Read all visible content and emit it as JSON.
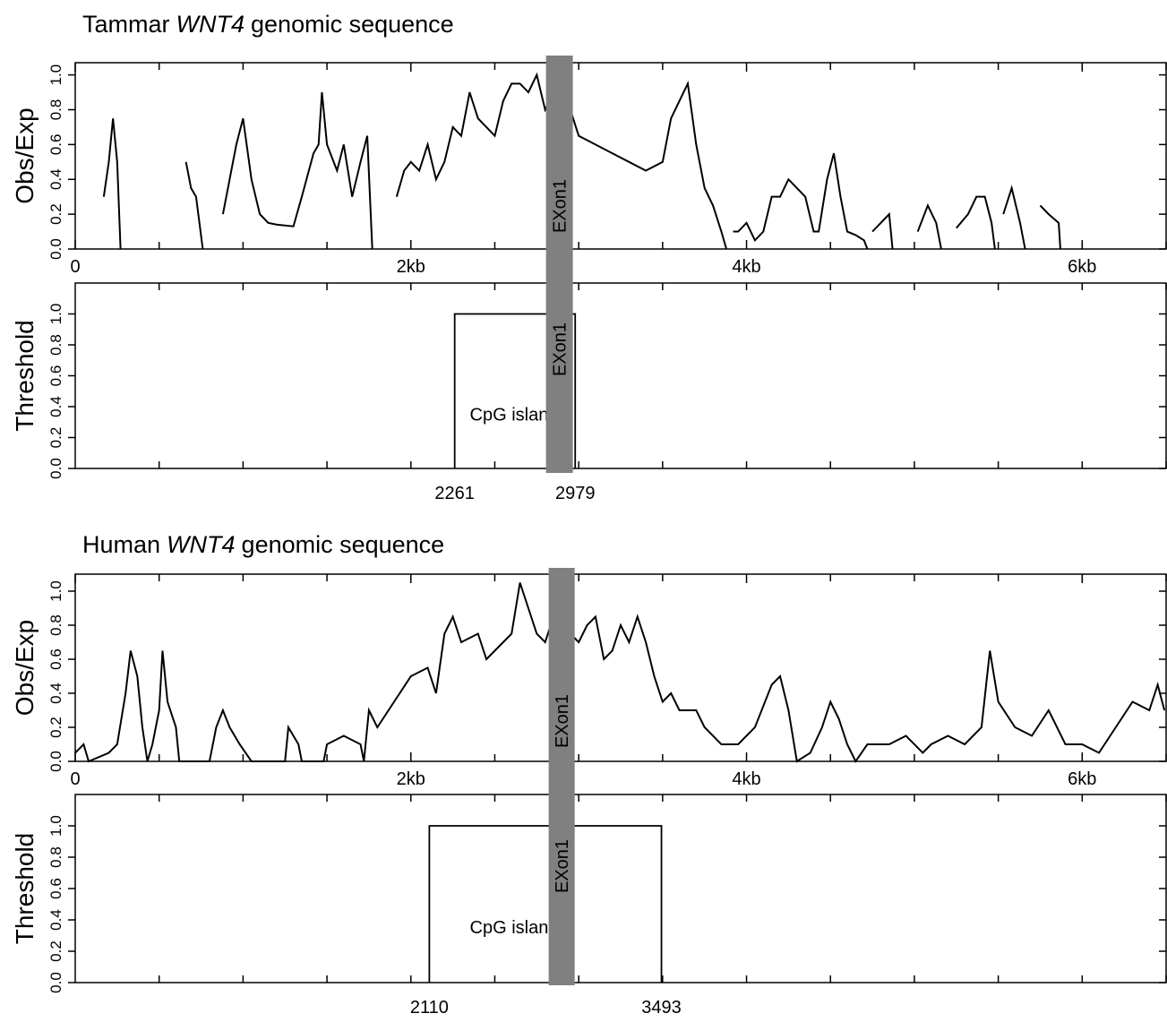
{
  "chart_data": [
    {
      "type": "line",
      "title_prefix": "Tammar",
      "title_gene": "WNT4",
      "title_suffix": "genomic sequence",
      "ylabel": "Obs/Exp",
      "x": [
        170,
        200,
        225,
        250,
        270,
        300,
        660,
        690,
        720,
        760,
        800,
        880,
        920,
        960,
        1000,
        1050,
        1100,
        1150,
        1200,
        1300,
        1350,
        1420,
        1450,
        1470,
        1500,
        1560,
        1600,
        1650,
        1700,
        1740,
        1770,
        1800,
        1915,
        1960,
        2000,
        2050,
        2100,
        2150,
        2200,
        2250,
        2300,
        2350,
        2400,
        2450,
        2500,
        2550,
        2600,
        2650,
        2700,
        2750,
        2800,
        2850,
        2900,
        2950,
        3000,
        3100,
        3200,
        3300,
        3400,
        3500,
        3550,
        3650,
        3700,
        3750,
        3800,
        3850,
        3880,
        3900,
        3920,
        3950,
        4000,
        4050,
        4100,
        4150,
        4200,
        4250,
        4300,
        4350,
        4400,
        4430,
        4480,
        4520,
        4560,
        4600,
        4650,
        4700,
        4720,
        4735,
        4750,
        4850,
        4870,
        4950,
        5020,
        5080,
        5130,
        5160,
        5200,
        5250,
        5320,
        5370,
        5420,
        5460,
        5480,
        5500,
        5530,
        5580,
        5630,
        5660,
        5700,
        5750,
        5800,
        5860,
        5870
      ],
      "series": [
        {
          "name": "Obs/Exp",
          "color": "#000000",
          "values": [
            0.3,
            0.5,
            0.75,
            0.5,
            0.0,
            null,
            0.5,
            0.35,
            0.3,
            0.0,
            null,
            0.2,
            0.4,
            0.6,
            0.75,
            0.4,
            0.2,
            0.15,
            0.14,
            0.13,
            0.3,
            0.55,
            0.6,
            0.9,
            0.6,
            0.45,
            0.6,
            0.3,
            0.5,
            0.65,
            0.0,
            null,
            0.3,
            0.45,
            0.5,
            0.45,
            0.6,
            0.4,
            0.5,
            0.7,
            0.65,
            0.9,
            0.75,
            0.7,
            0.65,
            0.85,
            0.95,
            0.95,
            0.9,
            1.0,
            0.8,
            0.9,
            1.05,
            0.8,
            0.65,
            0.6,
            0.55,
            0.5,
            0.45,
            0.5,
            0.75,
            0.95,
            0.6,
            0.35,
            0.25,
            0.1,
            0.0,
            null,
            0.1,
            0.1,
            0.15,
            0.05,
            0.1,
            0.3,
            0.3,
            0.4,
            0.35,
            0.3,
            0.1,
            0.1,
            0.4,
            0.55,
            0.3,
            0.1,
            0.08,
            0.05,
            0.0,
            null,
            0.1,
            0.2,
            0.0,
            null,
            0.1,
            0.25,
            0.15,
            0.0,
            null,
            0.12,
            0.2,
            0.3,
            0.3,
            0.15,
            0.0,
            null,
            0.2,
            0.35,
            0.15,
            0.0,
            null,
            0.25,
            0.2,
            0.15,
            0.0
          ]
        }
      ],
      "xlim": [
        0,
        6500
      ],
      "ylim": [
        0,
        1.07
      ],
      "xticks": [
        0,
        {
          "value": 2000,
          "label": "2kb"
        },
        {
          "value": 4000,
          "label": "4kb"
        },
        {
          "value": 6000,
          "label": "6kb"
        }
      ],
      "minor_xticks": [
        500,
        1000,
        1500,
        2500,
        3000,
        3500,
        4500,
        5000,
        5500,
        6000,
        6500
      ],
      "yticks": [
        {
          "value": 0,
          "label": "0.0"
        },
        0.2,
        0.4,
        0.6,
        0.8,
        {
          "value": 1,
          "label": "1.0"
        }
      ],
      "exon": {
        "label": "EXon1",
        "start": 2805,
        "end": 2965,
        "color": "#808080"
      }
    },
    {
      "type": "step",
      "ylabel": "Threshold",
      "island": {
        "label": "CpG island",
        "start": 2261,
        "end": 2979,
        "value": 1,
        "color": "#000000"
      },
      "xlim": [
        0,
        6500
      ],
      "ylim": [
        0,
        1.2
      ],
      "minor_xticks": [
        500,
        1000,
        1500,
        2000,
        2500,
        3000,
        3500,
        4000,
        4500,
        5000,
        5500,
        6000,
        6500
      ],
      "yticks": [
        {
          "value": 0,
          "label": "0.0"
        },
        0.2,
        0.4,
        0.6,
        0.8,
        {
          "value": 1,
          "label": "1.0"
        }
      ],
      "exon": {
        "label": "EXon1",
        "start": 2805,
        "end": 2965,
        "color": "#808080"
      }
    },
    {
      "type": "line",
      "title_prefix": "Human",
      "title_gene": "WNT4",
      "title_suffix": "genomic sequence",
      "ylabel": "Obs/Exp",
      "x": [
        0,
        50,
        80,
        200,
        250,
        300,
        330,
        370,
        400,
        430,
        460,
        500,
        520,
        550,
        600,
        620,
        800,
        840,
        880,
        920,
        980,
        1050,
        1250,
        1270,
        1330,
        1350,
        1480,
        1500,
        1600,
        1700,
        1720,
        1750,
        1800,
        1900,
        2000,
        2100,
        2150,
        2200,
        2250,
        2300,
        2400,
        2450,
        2500,
        2600,
        2650,
        2700,
        2750,
        2800,
        2850,
        2900,
        2950,
        3000,
        3050,
        3100,
        3150,
        3200,
        3250,
        3300,
        3350,
        3400,
        3450,
        3500,
        3550,
        3600,
        3700,
        3750,
        3850,
        3950,
        4050,
        4150,
        4200,
        4250,
        4300,
        4380,
        4450,
        4500,
        4550,
        4600,
        4650,
        4720,
        4850,
        4950,
        5050,
        5100,
        5200,
        5300,
        5400,
        5450,
        5500,
        5600,
        5700,
        5800,
        5900,
        6000,
        6100,
        6200,
        6300,
        6400,
        6450,
        6490
      ],
      "series": [
        {
          "name": "Obs/Exp",
          "color": "#000000",
          "values": [
            0.05,
            0.1,
            0.0,
            0.05,
            0.1,
            0.4,
            0.65,
            0.5,
            0.2,
            0.0,
            0.1,
            0.3,
            0.65,
            0.35,
            0.2,
            0.0,
            0.0,
            0.2,
            0.3,
            0.2,
            0.1,
            0.0,
            0.0,
            0.2,
            0.1,
            0.0,
            0.0,
            0.1,
            0.15,
            0.1,
            0.0,
            0.3,
            0.2,
            0.35,
            0.5,
            0.55,
            0.4,
            0.75,
            0.85,
            0.7,
            0.75,
            0.6,
            0.65,
            0.75,
            1.05,
            0.9,
            0.75,
            0.7,
            0.85,
            1.0,
            0.75,
            0.7,
            0.8,
            0.85,
            0.6,
            0.65,
            0.8,
            0.7,
            0.85,
            0.7,
            0.5,
            0.35,
            0.4,
            0.3,
            0.3,
            0.2,
            0.1,
            0.1,
            0.2,
            0.45,
            0.5,
            0.3,
            0.0,
            0.05,
            0.2,
            0.35,
            0.25,
            0.1,
            0.0,
            0.1,
            0.1,
            0.15,
            0.05,
            0.1,
            0.15,
            0.1,
            0.2,
            0.65,
            0.35,
            0.2,
            0.15,
            0.3,
            0.1,
            0.1,
            0.05,
            0.2,
            0.35,
            0.3,
            0.45,
            0.3
          ]
        }
      ],
      "xlim": [
        0,
        6500
      ],
      "ylim": [
        0,
        1.1
      ],
      "xticks": [
        0,
        {
          "value": 2000,
          "label": "2kb"
        },
        {
          "value": 4000,
          "label": "4kb"
        },
        {
          "value": 6000,
          "label": "6kb"
        }
      ],
      "minor_xticks": [
        500,
        1000,
        1500,
        2500,
        3000,
        3500,
        4500,
        5000,
        5500,
        6000,
        6500
      ],
      "yticks": [
        {
          "value": 0,
          "label": "0.0"
        },
        0.2,
        0.4,
        0.6,
        0.8,
        {
          "value": 1,
          "label": "1.0"
        }
      ],
      "exon": {
        "label": "EXon1",
        "start": 2821,
        "end": 2976,
        "color": "#808080"
      }
    },
    {
      "type": "step",
      "ylabel": "Threshold",
      "island": {
        "label": "CpG island",
        "start": 2110,
        "end": 3493,
        "value": 1,
        "color": "#000000"
      },
      "xlim": [
        0,
        6500
      ],
      "ylim": [
        0,
        1.2
      ],
      "minor_xticks": [
        500,
        1000,
        1500,
        2000,
        2500,
        3000,
        3500,
        4000,
        4500,
        5000,
        5500,
        6000,
        6500
      ],
      "yticks": [
        {
          "value": 0,
          "label": "0.0"
        },
        0.2,
        0.4,
        0.6,
        0.8,
        {
          "value": 1,
          "label": "1.0"
        }
      ],
      "exon": {
        "label": "EXon1",
        "start": 2821,
        "end": 2976,
        "color": "#808080"
      }
    }
  ]
}
